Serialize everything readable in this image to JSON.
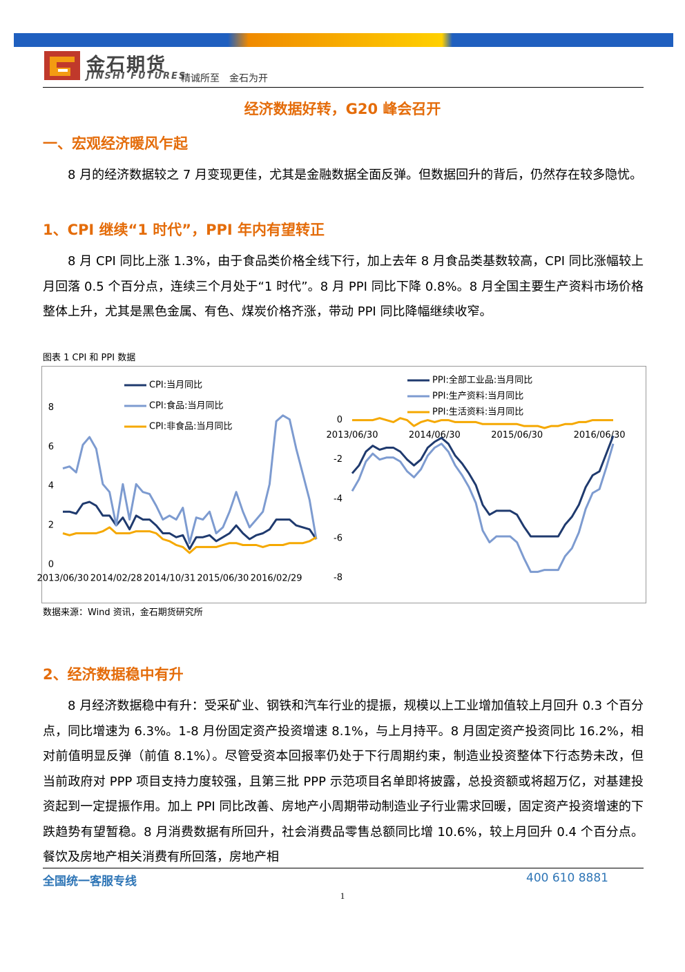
{
  "header": {
    "logo_cn": "金石期货",
    "logo_en": "JINSHI FUTURES",
    "slogan": "精诚所至　金石为开"
  },
  "title": "经济数据好转，G20 峰会召开",
  "section1": {
    "heading": "一、宏观经济暖风乍起",
    "paragraph": "8 月的经济数据较之 7 月变现更佳，尤其是金融数据全面反弹。但数据回升的背后，仍然存在较多隐忧。"
  },
  "section2": {
    "heading": "1、CPI 继续“1 时代”，PPI 年内有望转正",
    "paragraph": "8 月 CPI 同比上涨 1.3%，由于食品类价格全线下行，加上去年 8 月食品类基数较高，CPI 同比涨幅较上月回落 0.5 个百分点，连续三个月处于“1 时代”。8 月 PPI 同比下降 0.8%。8 月全国主要生产资料市场价格整体上升，尤其是黑色金属、有色、煤炭价格齐涨，带动 PPI 同比降幅继续收窄。"
  },
  "figure": {
    "caption": "图表 1 CPI 和 PPI 数据",
    "source": "数据来源：Wind 资讯，金石期货研究所"
  },
  "chart_data": [
    {
      "type": "line",
      "legend": "upper left",
      "xaxis": "bottom",
      "categories": [
        "2013/06/30",
        null,
        null,
        null,
        null,
        null,
        null,
        null,
        "2014/02/28",
        null,
        null,
        null,
        null,
        null,
        null,
        null,
        "2014/10/31",
        null,
        null,
        null,
        null,
        null,
        null,
        null,
        "2015/06/30",
        null,
        null,
        null,
        null,
        null,
        null,
        null,
        "2016/02/29",
        null,
        null,
        null,
        null,
        null,
        null
      ],
      "ylim": [
        0,
        8.4
      ],
      "yticks": [
        0,
        2,
        4,
        6,
        8
      ],
      "series": [
        {
          "name": "CPI:当月同比",
          "color": "#1f3a6e",
          "values": [
            2.7,
            2.7,
            2.6,
            3.1,
            3.2,
            3.0,
            2.5,
            2.5,
            2.0,
            2.4,
            1.8,
            2.5,
            2.3,
            2.3,
            2.0,
            1.6,
            1.6,
            1.4,
            1.5,
            0.8,
            1.4,
            1.4,
            1.5,
            1.2,
            1.4,
            1.6,
            2.0,
            1.6,
            1.3,
            1.5,
            1.6,
            1.8,
            2.3,
            2.3,
            2.3,
            2.0,
            1.9,
            1.8,
            1.3
          ]
        },
        {
          "name": "CPI:食品:当月同比",
          "color": "#7d9bd0",
          "values": [
            4.9,
            5.0,
            4.7,
            6.1,
            6.5,
            5.9,
            4.1,
            3.7,
            2.0,
            4.1,
            2.3,
            4.1,
            3.7,
            3.6,
            3.0,
            2.3,
            2.5,
            2.3,
            2.9,
            1.1,
            2.4,
            2.3,
            2.7,
            1.6,
            1.9,
            2.7,
            3.7,
            2.7,
            1.9,
            2.3,
            2.7,
            4.1,
            7.3,
            7.6,
            7.4,
            5.9,
            4.6,
            3.3,
            1.3
          ]
        },
        {
          "name": "CPI:非食品:当月同比",
          "color": "#f5a800",
          "values": [
            1.6,
            1.5,
            1.6,
            1.6,
            1.6,
            1.6,
            1.7,
            1.9,
            1.6,
            1.6,
            1.6,
            1.7,
            1.7,
            1.7,
            1.6,
            1.3,
            1.2,
            1.0,
            0.9,
            0.6,
            0.9,
            0.9,
            0.9,
            0.9,
            1.0,
            1.1,
            1.1,
            1.0,
            1.0,
            1.0,
            0.9,
            1.0,
            1.0,
            1.0,
            1.1,
            1.1,
            1.1,
            1.2,
            1.4
          ]
        }
      ]
    },
    {
      "type": "line",
      "legend": "upper center",
      "xaxis": "zero",
      "categories": [
        "2013/06/30",
        null,
        null,
        null,
        null,
        null,
        null,
        null,
        null,
        null,
        null,
        null,
        "2014/06/30",
        null,
        null,
        null,
        null,
        null,
        null,
        null,
        null,
        null,
        null,
        null,
        "2015/06/30",
        null,
        null,
        null,
        null,
        null,
        null,
        null,
        null,
        null,
        null,
        null,
        "2016/06/30",
        null,
        null
      ],
      "ylim": [
        -8,
        1
      ],
      "yticks": [
        0,
        -2,
        -4,
        -6,
        -8
      ],
      "series": [
        {
          "name": "PPI:全部工业品:当月同比",
          "color": "#1f3a6e",
          "values": [
            -2.7,
            -2.3,
            -1.6,
            -1.3,
            -1.5,
            -1.4,
            -1.4,
            -1.6,
            -2.0,
            -2.3,
            -2.0,
            -1.4,
            -1.1,
            -0.9,
            -1.2,
            -1.8,
            -2.2,
            -2.7,
            -3.3,
            -4.3,
            -4.8,
            -4.6,
            -4.6,
            -4.6,
            -4.8,
            -5.4,
            -5.9,
            -5.9,
            -5.9,
            -5.9,
            -5.9,
            -5.3,
            -4.9,
            -4.3,
            -3.4,
            -2.8,
            -2.6,
            -1.7,
            -0.8
          ]
        },
        {
          "name": "PPI:生产资料:当月同比",
          "color": "#7d9bd0",
          "values": [
            -3.6,
            -3.0,
            -2.1,
            -1.7,
            -2.0,
            -1.9,
            -1.9,
            -2.1,
            -2.6,
            -2.9,
            -2.5,
            -1.8,
            -1.4,
            -1.2,
            -1.6,
            -2.3,
            -2.8,
            -3.4,
            -4.2,
            -5.6,
            -6.2,
            -5.9,
            -5.9,
            -5.9,
            -6.2,
            -7.0,
            -7.7,
            -7.7,
            -7.6,
            -7.6,
            -7.6,
            -6.9,
            -6.5,
            -5.7,
            -4.5,
            -3.7,
            -3.5,
            -2.4,
            -1.2
          ]
        },
        {
          "name": "PPI:生活资料:当月同比",
          "color": "#f5a800",
          "values": [
            0,
            0,
            0,
            0,
            0.1,
            0,
            -0.1,
            0.1,
            0,
            -0.3,
            -0.1,
            0,
            -0.1,
            0,
            0,
            -0.1,
            -0.1,
            -0.1,
            -0.1,
            -0.2,
            -0.2,
            -0.2,
            -0.2,
            -0.2,
            -0.2,
            -0.3,
            -0.3,
            -0.3,
            -0.4,
            -0.3,
            -0.3,
            -0.2,
            -0.2,
            -0.1,
            -0.1,
            0,
            0,
            0,
            0
          ]
        }
      ]
    }
  ],
  "section3": {
    "heading": "2、经济数据稳中有升",
    "paragraph": "8 月经济数据稳中有升：受采矿业、钢铁和汽车行业的提振，规模以上工业增加值较上月回升 0.3 个百分点，同比增速为 6.3%。1-8 月份固定资产投资增速 8.1%，与上月持平。8 月固定资产投资同比 16.2%，相对前值明显反弹（前值 8.1%）。尽管受资本回报率仍处于下行周期约束，制造业投资整体下行态势未改，但当前政府对 PPP 项目支持力度较强，且第三批 PPP 示范项目名单即将披露，总投资额或将超万亿，对基建投资起到一定提振作用。加上 PPI 同比改善、房地产小周期带动制造业子行业需求回暖，固定资产投资增速的下跌趋势有望暂稳。8 月消费数据有所回升，社会消费品零售总额同比增 10.6%，较上月回升 0.4 个百分点。餐饮及房地产相关消费有所回落，房地产相"
  },
  "footer": {
    "hotline": "全国统一客服专线",
    "phone": "400 610 8881",
    "page": "1"
  }
}
